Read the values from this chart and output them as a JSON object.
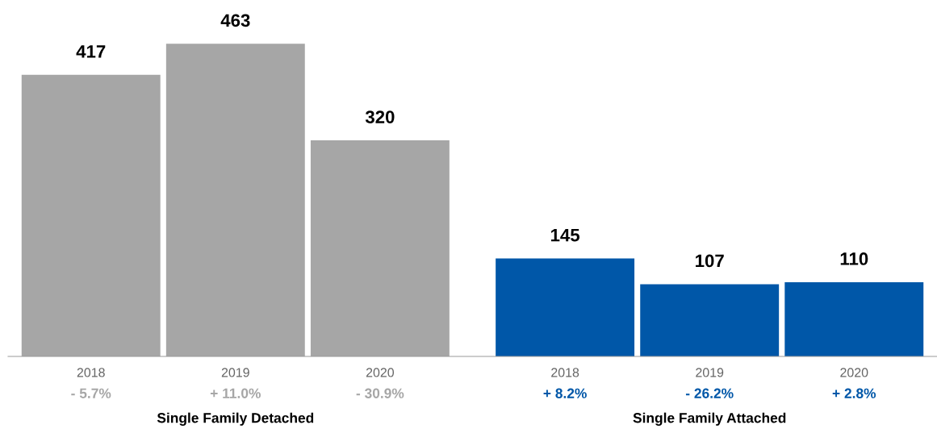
{
  "chart_data": {
    "type": "bar",
    "categories": [
      "2018",
      "2019",
      "2020",
      "2018",
      "2019",
      "2020"
    ],
    "series": [
      {
        "color": "#a6a6a6",
        "values": [
          417,
          463,
          320,
          null,
          null,
          null
        ]
      },
      {
        "color": "#0057a8",
        "values": [
          null,
          null,
          null,
          145,
          107,
          110
        ]
      }
    ],
    "data_labels": true,
    "annotations": [
      "- 5.7%",
      "+ 11.0%",
      "- 30.9%",
      "+ 8.2%",
      "- 26.2%",
      "+ 2.8%",
      "Single Family Detached",
      "Single Family Attached"
    ]
  }
}
